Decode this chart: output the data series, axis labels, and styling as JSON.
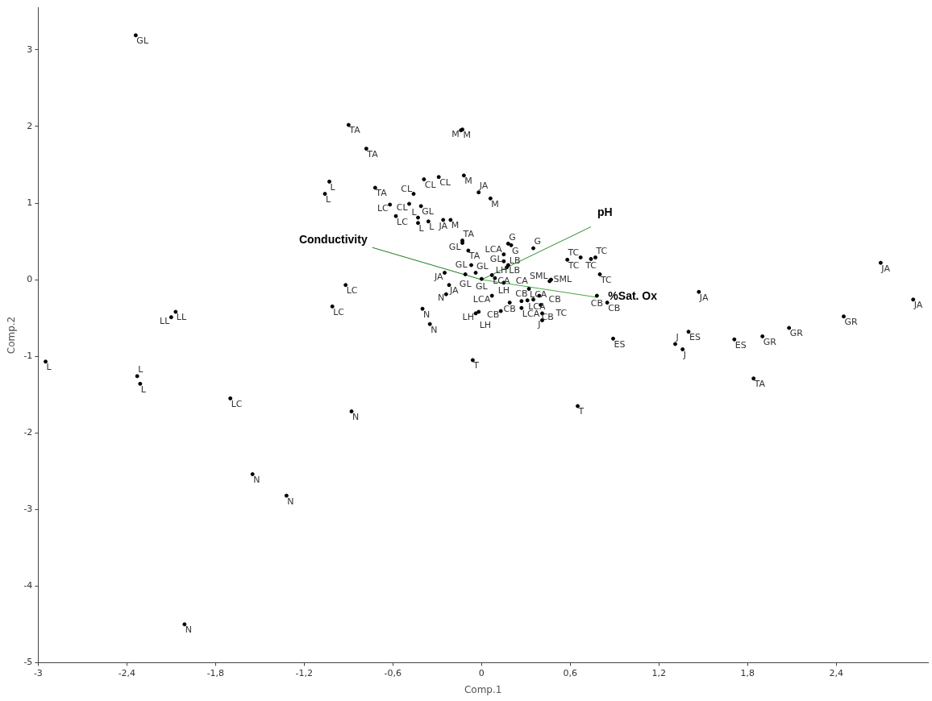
{
  "chart_data": {
    "type": "scatter",
    "xlabel": "Comp.1",
    "ylabel": "Comp.2",
    "xlim": [
      -3,
      3.02
    ],
    "ylim": [
      -5,
      3.55
    ],
    "xticks": [
      -3,
      {
        "value": -2.4,
        "label": "-2,4"
      },
      {
        "value": -1.8,
        "label": "-1,8"
      },
      {
        "value": -1.2,
        "label": "-1,2"
      },
      {
        "value": -0.6,
        "label": "-0,6"
      },
      0,
      {
        "value": 0.6,
        "label": "0,6"
      },
      {
        "value": 1.2,
        "label": "1,2"
      },
      {
        "value": 1.8,
        "label": "1,8"
      },
      {
        "value": 2.4,
        "label": "2,4"
      }
    ],
    "yticks": [
      -5,
      -4,
      -3,
      -2,
      -1,
      0,
      1,
      2,
      3
    ],
    "grid": false,
    "legend": false,
    "series": [
      {
        "type": "scatter",
        "color": "#000000",
        "marker": "circle",
        "x": [
          -2.34,
          -0.9,
          -0.78,
          -1.03,
          -1.06,
          -0.72,
          -0.14,
          -0.13,
          -0.39,
          -0.29,
          -0.12,
          -0.02,
          0.06,
          -0.46,
          -0.49,
          -0.41,
          -0.62,
          -0.58,
          -0.43,
          -0.43,
          -0.36,
          -0.26,
          -0.21,
          -0.92,
          -1.01,
          -2.07,
          -2.1,
          -2.95,
          -2.33,
          -2.31,
          -1.7,
          -0.88,
          -1.55,
          -1.32,
          -2.01,
          -0.25,
          -0.22,
          -0.24,
          -0.4,
          -0.35,
          -0.06,
          0.65,
          1.47,
          0.89,
          1.4,
          1.31,
          1.36,
          1.71,
          1.9,
          2.08,
          2.45,
          1.84,
          2.7,
          2.92,
          0.58,
          0.67,
          0.74,
          0.77,
          0.8,
          0.85,
          0.78,
          0.18,
          0.2,
          0.35,
          0.47,
          0.46,
          -0.13,
          -0.13,
          -0.09,
          -0.07,
          -0.11,
          -0.04,
          0.0,
          0.07,
          0.09,
          0.15,
          0.07,
          0.19,
          0.13,
          -0.04,
          -0.02,
          0.27,
          0.27,
          0.32,
          0.31,
          0.35,
          0.39,
          0.4,
          0.41,
          0.41,
          0.15,
          0.15,
          0.17,
          0.18
        ],
        "values": [
          3.19,
          2.02,
          1.71,
          1.28,
          1.12,
          1.2,
          1.95,
          1.96,
          1.31,
          1.34,
          1.36,
          1.14,
          1.06,
          1.12,
          0.99,
          0.96,
          0.98,
          0.83,
          0.81,
          0.74,
          0.76,
          0.78,
          0.78,
          -0.07,
          -0.35,
          -0.42,
          -0.49,
          -1.07,
          -1.26,
          -1.36,
          -1.55,
          -1.72,
          -2.54,
          -2.82,
          -4.5,
          0.09,
          -0.07,
          -0.19,
          -0.38,
          -0.58,
          -1.05,
          -1.65,
          -0.16,
          -0.77,
          -0.68,
          -0.84,
          -0.91,
          -0.78,
          -0.74,
          -0.63,
          -0.48,
          -1.29,
          0.22,
          -0.26,
          0.26,
          0.29,
          0.27,
          0.29,
          0.07,
          -0.3,
          -0.21,
          0.47,
          0.45,
          0.41,
          0.0,
          -0.02,
          0.51,
          0.48,
          0.38,
          0.19,
          0.07,
          0.09,
          0.01,
          0.06,
          0.02,
          -0.04,
          -0.21,
          -0.3,
          -0.41,
          -0.44,
          -0.42,
          -0.28,
          -0.37,
          -0.12,
          -0.27,
          -0.26,
          -0.21,
          -0.33,
          -0.44,
          -0.53,
          0.33,
          0.24,
          0.16,
          0.19
        ],
        "value_labels": [
          "GL",
          "TA",
          "TA",
          "L",
          "L",
          "TA",
          "M",
          "M",
          "CL",
          "CL",
          "M",
          "JA",
          "M",
          "CL",
          "CL",
          "GL",
          "LC",
          "LC",
          "L",
          "L",
          "L",
          "JA",
          "M",
          "LC",
          "LC",
          "LL",
          "LL",
          "L",
          "L",
          "L",
          "LC",
          "N",
          "N",
          "N",
          "N",
          "JA",
          "JA",
          "N",
          "N",
          "N",
          "T",
          "T",
          "JA",
          "ES",
          "ES",
          "J",
          "J",
          "ES",
          "GR",
          "GR",
          "GR",
          "TA",
          "JA",
          "JA",
          "TC",
          "TC",
          "TC",
          "TC",
          "TC",
          "CB",
          "CB",
          "G",
          "G",
          "G",
          "SML",
          "SML",
          "TA",
          "GL",
          "TA",
          "GL",
          "GL",
          "GL",
          "GL",
          "LCA",
          "LH",
          "LH",
          "LCA",
          "CB",
          "CB",
          "LH",
          "LH",
          "CB",
          "LCA",
          "LCA",
          "LCA",
          "CB",
          "CA",
          "CB",
          "TC",
          "J",
          "LCA",
          "LB",
          "GL",
          "LB"
        ]
      },
      {
        "type": "line",
        "name": "Conductivity",
        "color": "#1e7a1e",
        "marker": "none",
        "x": [
          0,
          -0.74
        ],
        "values": [
          0,
          0.42
        ]
      },
      {
        "type": "line",
        "name": "pH",
        "color": "#2e8b2e",
        "marker": "none",
        "x": [
          0,
          0.74
        ],
        "values": [
          0,
          0.69
        ]
      },
      {
        "type": "line",
        "name": "%Sat. Ox",
        "color": "#45a845",
        "marker": "none",
        "x": [
          0,
          0.78
        ],
        "values": [
          0,
          -0.23
        ]
      }
    ]
  }
}
